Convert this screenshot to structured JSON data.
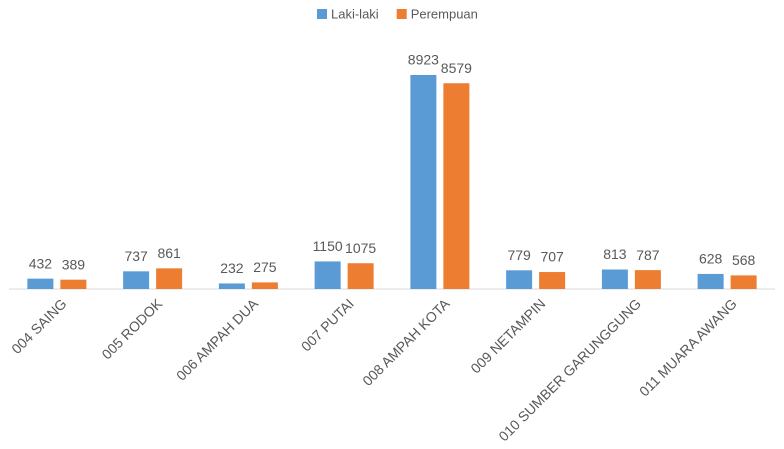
{
  "chart_data": {
    "type": "bar",
    "categories": [
      "004 SAING",
      "005 RODOK",
      "006 AMPAH DUA",
      "007 PUTAI",
      "008 AMPAH KOTA",
      "009 NETAMPIN",
      "010 SUMBER GARUNGGUNG",
      "011 MUARA AWANG"
    ],
    "series": [
      {
        "name": "Laki-laki",
        "color": "#5b9bd5",
        "values": [
          432,
          737,
          232,
          1150,
          8923,
          779,
          813,
          628
        ]
      },
      {
        "name": "Perempuan",
        "color": "#ed7d31",
        "values": [
          389,
          861,
          275,
          1075,
          8579,
          707,
          787,
          568
        ]
      }
    ],
    "legend": "top"
  }
}
